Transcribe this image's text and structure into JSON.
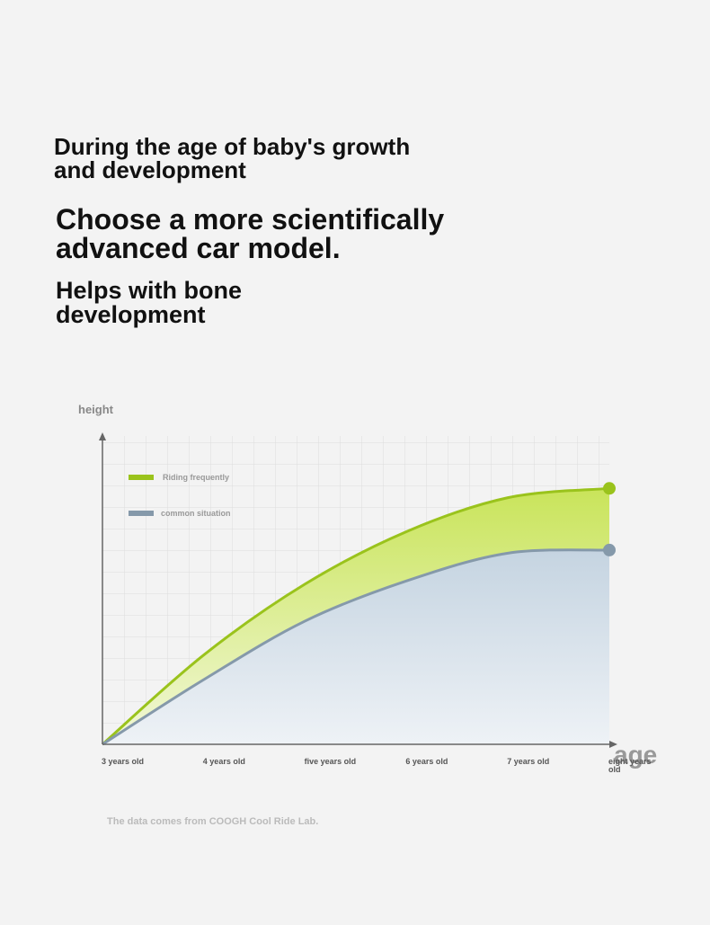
{
  "headings": [
    "During the age of baby's growth and development",
    "Choose a more scientifically advanced car model.",
    "Helps with bone development"
  ],
  "source": "The data comes from COOGH Cool Ride Lab.",
  "chart_data": {
    "type": "area",
    "y_label": "height",
    "x_label": "age",
    "categories": [
      "3 years old",
      "4 years old",
      "five years old",
      "6 years old",
      "7 years old",
      "eight years old"
    ],
    "ylim": [
      0,
      100
    ],
    "series": [
      {
        "name": "Riding frequently",
        "color": "#9ac31c",
        "values": [
          0,
          29,
          52,
          69,
          80,
          83
        ]
      },
      {
        "name": "common situation",
        "color": "#8599aa",
        "values": [
          0,
          21,
          40,
          53,
          62,
          63
        ]
      }
    ]
  }
}
